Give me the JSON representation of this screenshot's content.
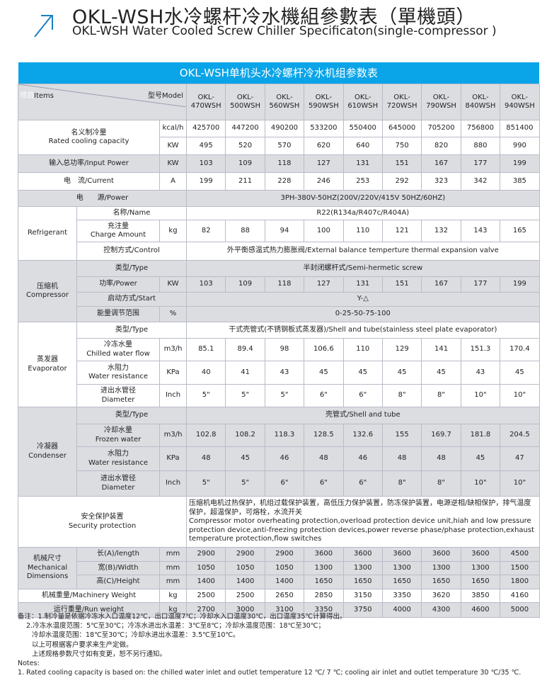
{
  "page": {
    "title_cn": "OKL-WSH水冷螺杆冷水機組參數表（單機頭）",
    "title_en": "OKL-WSH Water Cooled Screw Chiller Specificaton(single-compressor )",
    "accent_color": "#0aa4e8",
    "icon": "arrow-up-right-icon"
  },
  "table": {
    "title": "OKL-WSH单机头水冷螺杆冷水机组参数表",
    "header": {
      "items_cn": "项目",
      "items_en": "Items",
      "model": "型号Model",
      "models": [
        "OKL-\n470WSH",
        "OKL-\n500WSH",
        "OKL-\n560WSH",
        "OKL-\n590WSH",
        "OKL-\n610WSH",
        "OKL-\n720WSH",
        "OKL-\n790WSH",
        "OKL-\n840WSH",
        "OKL-\n940WSH"
      ]
    },
    "cooling": {
      "label": "名义制冷量\nRated cooling capacity",
      "unit1": "kcal/h",
      "unit2": "KW",
      "kcal": [
        "425700",
        "447200",
        "490200",
        "533200",
        "550400",
        "645000",
        "705200",
        "756800",
        "851400"
      ],
      "kw": [
        "495",
        "520",
        "570",
        "620",
        "640",
        "750",
        "820",
        "880",
        "990"
      ]
    },
    "input_power": {
      "label": "输入总功率/Input Power",
      "unit": "KW",
      "values": [
        "103",
        "109",
        "118",
        "127",
        "131",
        "151",
        "167",
        "177",
        "199"
      ]
    },
    "current": {
      "label": "电　流/Current",
      "unit": "A",
      "values": [
        "199",
        "211",
        "228",
        "246",
        "253",
        "292",
        "323",
        "342",
        "385"
      ]
    },
    "power": {
      "label": "电　　源/Power",
      "value": "3PH-380V-50HZ(200V/220V/415V  50HZ/60HZ)"
    },
    "refrigerant": {
      "group": "Refrigerant",
      "name_label": "名称/Name",
      "name_value": "R22(R134a/R407c/R404A)",
      "charge_label": "充注量\nCharge Amount",
      "charge_unit": "kg",
      "charge": [
        "82",
        "88",
        "94",
        "100",
        "110",
        "121",
        "132",
        "143",
        "165"
      ],
      "control_label": "控制方式/Control",
      "control_value": "外平衡感温式热力膨胀阀/External balance temperture thermal expansion valve"
    },
    "compressor": {
      "group": "压缩机\nCompressor",
      "type_label": "类型/Type",
      "type_value": "半封闭螺杆式/Semi-hermetic screw",
      "power_label": "功率/Power",
      "power_unit": "KW",
      "power": [
        "103",
        "109",
        "118",
        "127",
        "131",
        "151",
        "167",
        "177",
        "199"
      ],
      "start_label": "启动方式/Start",
      "start_value": "Y-△",
      "range_label": "能量调节范围",
      "range_unit": "%",
      "range_value": "0-25-50-75-100"
    },
    "evaporator": {
      "group": "蒸发器\nEvaporator",
      "type_label": "类型/Type",
      "type_value": "干式壳管式(不锈钢板式蒸发器)/Shell and tube(stainless steel plate evaporator)",
      "flow_label": "冷冻水量\nChilled water flow",
      "flow_unit": "m3/h",
      "flow": [
        "85.1",
        "89.4",
        "98",
        "106.6",
        "110",
        "129",
        "141",
        "151.3",
        "170.4"
      ],
      "res_label": "水阻力\nWater resistance",
      "res_unit": "KPa",
      "res": [
        "40",
        "41",
        "43",
        "45",
        "45",
        "45",
        "45",
        "43",
        "45"
      ],
      "dia_label": "进出水管径\nDiameter",
      "dia_unit": "Inch",
      "dia": [
        "5\"",
        "5\"",
        "5\"",
        "6\"",
        "6\"",
        "8\"",
        "8\"",
        "10\"",
        "10\""
      ]
    },
    "condenser": {
      "group": "冷凝器\nCondenser",
      "type_label": "类型/Type",
      "type_value": "壳管式/Shell and tube",
      "flow_label": "冷却水量\nFrozen water",
      "flow_unit": "m3/h",
      "flow": [
        "102.8",
        "108.2",
        "118.3",
        "128.5",
        "132.6",
        "155",
        "169.7",
        "181.8",
        "204.5"
      ],
      "res_label": "水阻力\nWater resistance",
      "res_unit": "KPa",
      "res": [
        "48",
        "45",
        "46",
        "48",
        "46",
        "48",
        "48",
        "45",
        "47"
      ],
      "dia_label": "进出水管径\nDiameter",
      "dia_unit": "Inch",
      "dia": [
        "5\"",
        "5\"",
        "6\"",
        "6\"",
        "6\"",
        "8\"",
        "8\"",
        "10\"",
        "10\""
      ]
    },
    "security": {
      "label": "安全保护装置\nSecurity protection",
      "value": "压缩机电机过热保护，机组过载保护装置，高低压力保护装置，防冻保护装置，电源逆相/缺相保护，排气温度保护，超温保护，可熔栓，水流开关\nCompressor motor overheating protection,overload protection device unit,hiah and low pressure protection device,anti-freezing protection devices,power reverse phase/phase protection,exhaust temperature protection,flow switches"
    },
    "dimensions": {
      "group": "机械尺寸\nMechanical\nDimensions",
      "unit": "mm",
      "length_label": "长(A)/length",
      "length": [
        "2900",
        "2900",
        "2900",
        "3600",
        "3600",
        "3600",
        "3600",
        "3600",
        "4500"
      ],
      "width_label": "宽(B)/Width",
      "width": [
        "1050",
        "1050",
        "1050",
        "1300",
        "1300",
        "1300",
        "1300",
        "1300",
        "1500"
      ],
      "height_label": "高(C)/Height",
      "height": [
        "1400",
        "1400",
        "1400",
        "1650",
        "1650",
        "1650",
        "1650",
        "1650",
        "1800"
      ]
    },
    "machinery_weight": {
      "label": "机械重量/Machinery Weight",
      "unit": "kg",
      "values": [
        "2500",
        "2500",
        "2650",
        "2850",
        "3150",
        "3350",
        "3620",
        "3850",
        "4160"
      ]
    },
    "run_weight": {
      "label": "运行重量/Run weight",
      "unit": "kg",
      "values": [
        "2700",
        "3000",
        "3100",
        "3350",
        "3750",
        "4000",
        "4300",
        "4600",
        "5000"
      ]
    }
  },
  "notes": {
    "cn": [
      "备注：1.制冷量是依据冷冻水入口温度12℃，出口温度7℃；冷却水入口温度30℃，出口温度35℃计算得出。",
      "2.冷冻水温度范围：5℃至30℃；冷冻水进出水温差：3℃至8℃；冷却水温度范围：18℃至30℃；",
      "冷却水温度范围：18℃至30℃；冷却水进出水温差：3.5℃至10℃。",
      "以上可根据客户要求来生产定做。",
      "上述规格参数尺寸如有变更，恕不另行通知。"
    ],
    "en_title": "Notes:",
    "en": [
      "1. Rated cooling capacity is based on: the chilled water inlet and outlet temperature 12 ℃/ 7 ℃; cooling air inlet and outlet temperature 30 ℃/35 ℃."
    ]
  }
}
